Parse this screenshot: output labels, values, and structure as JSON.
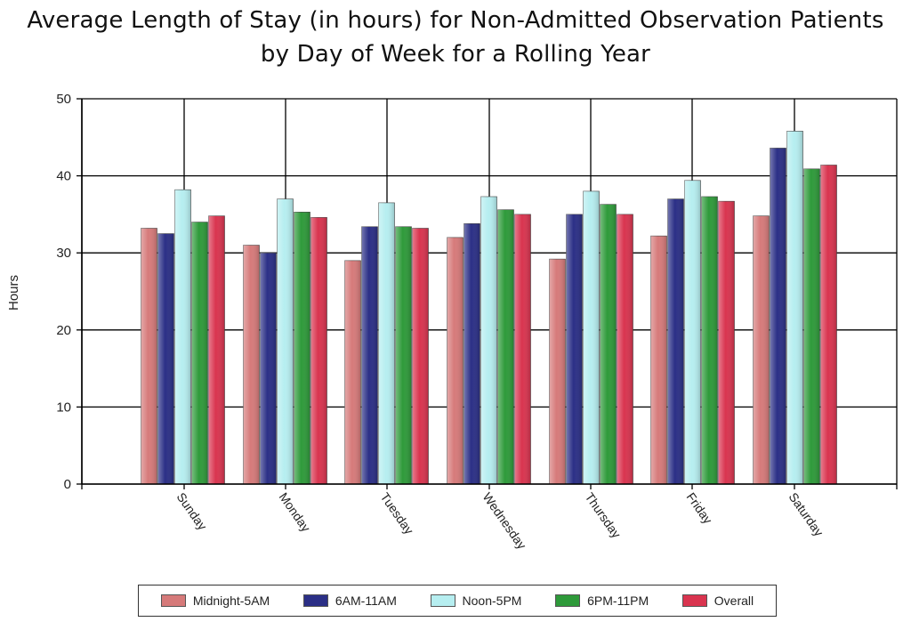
{
  "chart_data": {
    "type": "bar",
    "title_line1": "Average Length of Stay (in hours) for Non-Admitted Observation Patients",
    "title_line2": "by Day of Week for a Rolling Year",
    "xlabel": "",
    "ylabel": "Hours",
    "ylim": [
      0,
      50
    ],
    "yticks": [
      0,
      10,
      20,
      30,
      40,
      50
    ],
    "grid": true,
    "legend_position": "bottom",
    "categories": [
      "Sunday",
      "Monday",
      "Tuesday",
      "Wednesday",
      "Thursday",
      "Friday",
      "Saturday"
    ],
    "series": [
      {
        "name": "Midnight-5AM",
        "color": "#D67A7A",
        "values": [
          33.2,
          31.0,
          29.0,
          32.0,
          29.2,
          32.2,
          34.8
        ]
      },
      {
        "name": "6AM-11AM",
        "color": "#2B2F86",
        "values": [
          32.5,
          30.0,
          33.4,
          33.8,
          35.0,
          37.0,
          43.6
        ]
      },
      {
        "name": "Noon-5PM",
        "color": "#B6EEF0",
        "values": [
          38.2,
          37.0,
          36.5,
          37.3,
          38.0,
          39.4,
          45.8
        ]
      },
      {
        "name": "6PM-11PM",
        "color": "#2E9A3A",
        "values": [
          34.0,
          35.3,
          33.4,
          35.6,
          36.3,
          37.3,
          40.9
        ]
      },
      {
        "name": "Overall",
        "color": "#D9344F",
        "values": [
          34.8,
          34.6,
          33.2,
          35.0,
          35.0,
          36.7,
          41.4
        ]
      }
    ]
  }
}
